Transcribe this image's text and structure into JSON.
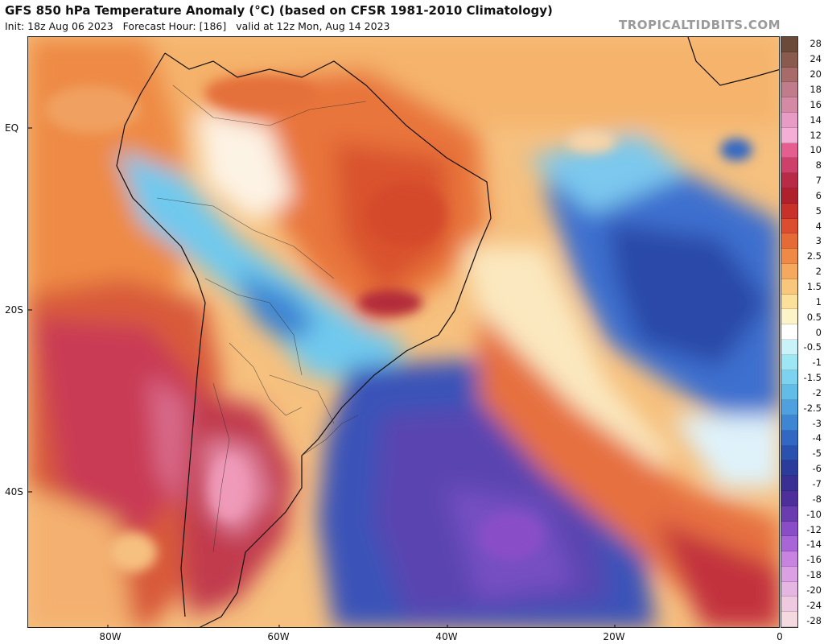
{
  "header": {
    "title": "GFS 850 hPa Temperature Anomaly (°C) (based on CFSR 1981-2010 Climatology)",
    "init": "Init: 18z Aug 06 2023",
    "forecast_hour": "Forecast Hour: [186]",
    "valid": "valid at 12z Mon, Aug 14 2023",
    "watermark": "TROPICALTIDBITS.COM"
  },
  "map": {
    "lat_labels": [
      "EQ",
      "20S",
      "40S"
    ],
    "lon_labels": [
      "80W",
      "60W",
      "40W",
      "20W",
      "0"
    ]
  },
  "colorbar": {
    "labels": [
      "28",
      "24",
      "20",
      "18",
      "16",
      "14",
      "12",
      "10",
      "8",
      "7",
      "6",
      "5",
      "4",
      "3",
      "2.5",
      "2",
      "1.5",
      "1",
      "0.5",
      "0",
      "-0.5",
      "-1",
      "-1.5",
      "-2",
      "-2.5",
      "-3",
      "-4",
      "-5",
      "-6",
      "-7",
      "-8",
      "-10",
      "-12",
      "-14",
      "-16",
      "-18",
      "-20",
      "-24",
      "-28"
    ],
    "colors": [
      "#6b4a3a",
      "#8a5a4e",
      "#a86b6a",
      "#c07c8a",
      "#d48aa5",
      "#e79bc5",
      "#f5aed6",
      "#e45f8f",
      "#cc4069",
      "#b82a45",
      "#b0202c",
      "#c8302a",
      "#dc4d2f",
      "#e66a35",
      "#ee8a45",
      "#f4a95e",
      "#f8c77c",
      "#fbe09c",
      "#fdf3c8",
      "#ffffff",
      "#c9f3f8",
      "#9de6f3",
      "#7dd3ef",
      "#62bce8",
      "#4ea0df",
      "#3e85d3",
      "#3268c3",
      "#2a50b0",
      "#2c3c9c",
      "#3a2f93",
      "#4e2e9a",
      "#6a3cb0",
      "#8a4dc8",
      "#a865d8",
      "#c883e0",
      "#db9fe3",
      "#e6b6e2",
      "#efc9df",
      "#f5d9e0"
    ]
  }
}
